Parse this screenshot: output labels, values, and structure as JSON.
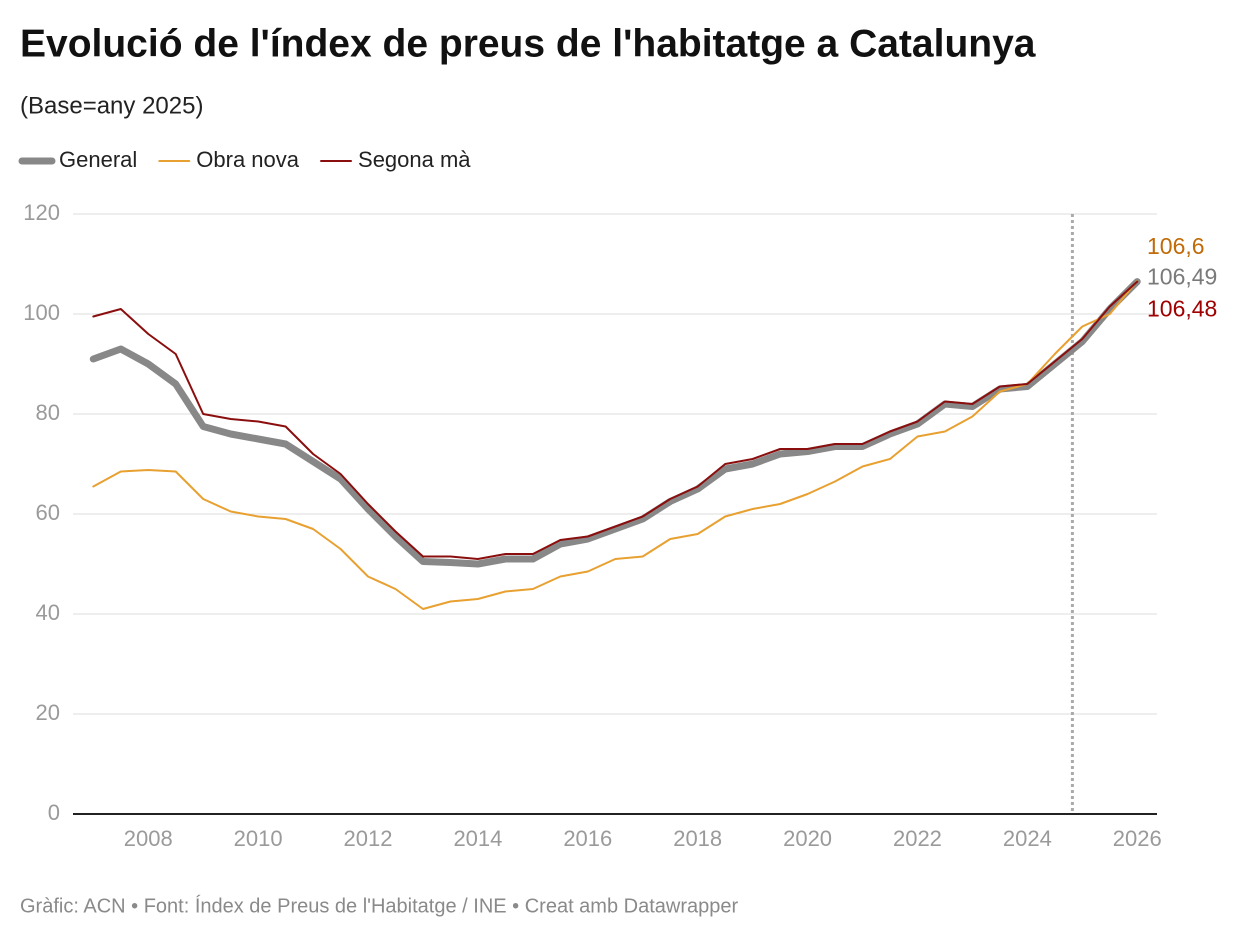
{
  "chart_data": {
    "type": "line",
    "title": "Evolució de l'índex de preus de l'habitatge a Catalunya",
    "subtitle": "(Base=any 2025)",
    "source": "Gràfic: ACN • Font: Índex de Preus de l'Habitatge / INE • Creat amb Datawrapper",
    "x": [
      2007,
      2007.5,
      2008,
      2008.5,
      2009,
      2009.5,
      2010,
      2010.5,
      2011,
      2011.5,
      2012,
      2012.5,
      2013,
      2013.5,
      2014,
      2014.5,
      2015,
      2015.5,
      2016,
      2016.5,
      2017,
      2017.5,
      2018,
      2018.5,
      2019,
      2019.5,
      2020,
      2020.5,
      2021,
      2021.5,
      2022,
      2022.5,
      2023,
      2023.5,
      2024,
      2024.5,
      2025,
      2025.5,
      2026
    ],
    "series": [
      {
        "name": "General",
        "color": "#888888",
        "width": 7,
        "values": [
          91,
          93,
          90,
          86,
          77.5,
          76,
          75,
          74,
          70.5,
          67,
          61,
          55.5,
          50.5,
          50.3,
          50,
          51,
          51,
          54,
          55,
          57,
          59,
          62.5,
          65,
          69,
          70,
          72,
          72.5,
          73.5,
          73.5,
          76,
          78,
          82,
          81.5,
          85,
          85.5,
          90,
          94.5,
          101,
          106.49
        ],
        "label_color": "#7a7a7a",
        "value_labels": {
          "38": "106,49"
        }
      },
      {
        "name": "Obra nova",
        "color": "#e8a030",
        "width": 2,
        "values": [
          65.5,
          68.5,
          68.8,
          68.5,
          63,
          60.5,
          59.5,
          59,
          57,
          53,
          47.5,
          45,
          41,
          42.5,
          43,
          44.5,
          45,
          47.5,
          48.5,
          51,
          51.5,
          55,
          56,
          59.5,
          61,
          62,
          64,
          66.5,
          69.5,
          71,
          75.5,
          76.5,
          79.5,
          84.5,
          86,
          92,
          97.5,
          100,
          106.6
        ],
        "label_color": "#c06a08",
        "value_labels": {
          "38": "106,6"
        }
      },
      {
        "name": "Segona mà",
        "color": "#8b0e0e",
        "width": 2,
        "values": [
          99.5,
          101,
          96,
          92,
          80,
          79,
          78.5,
          77.5,
          72,
          68,
          62,
          56.5,
          51.5,
          51.5,
          51,
          52,
          52,
          54.8,
          55.5,
          57.5,
          59.5,
          63,
          65.5,
          70,
          71,
          73,
          73,
          74,
          74,
          76.5,
          78.5,
          82.5,
          82,
          85.5,
          86,
          90.5,
          95,
          101.5,
          106.48
        ],
        "label_color": "#a00000",
        "value_labels": {
          "38": "106,48"
        }
      }
    ],
    "xlim": [
      2006.63,
      2026.36
    ],
    "xticks": [
      2008,
      2010,
      2012,
      2014,
      2016,
      2018,
      2020,
      2022,
      2024,
      2026
    ],
    "ylim": [
      0,
      120
    ],
    "yticks": [
      0,
      20,
      40,
      60,
      80,
      100,
      120
    ],
    "grid": true,
    "reference_line_x": 2024.82
  }
}
